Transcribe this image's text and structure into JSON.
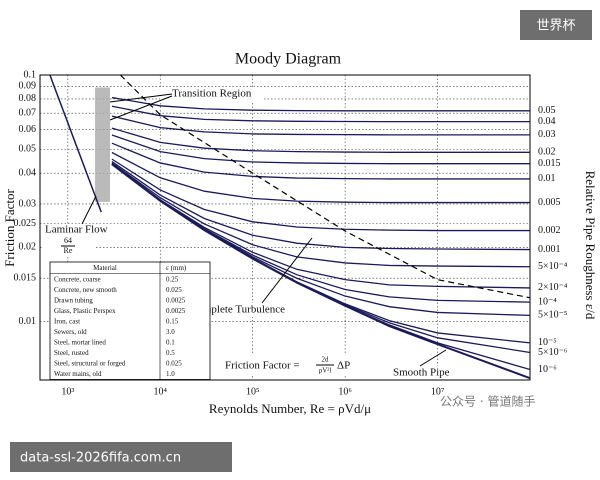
{
  "chart_data": {
    "type": "line",
    "title": "Moody Diagram",
    "xlabel": "Reynolds Number, Re = ρVd/μ",
    "ylabel": "Friction Factor",
    "y2label": "Relative Pipe Roughness ε/d",
    "xscale": "log",
    "yscale": "log",
    "grid": true,
    "xlim": [
      500,
      100000000
    ],
    "ylim": [
      0.0058,
      0.1
    ],
    "xticks": [
      {
        "value": 1000,
        "label": "10³"
      },
      {
        "value": 10000,
        "label": "10⁴"
      },
      {
        "value": 100000,
        "label": "10⁵"
      },
      {
        "value": 1000000,
        "label": "10⁶"
      },
      {
        "value": 10000000,
        "label": "10⁷"
      }
    ],
    "yticks": [
      0.1,
      0.09,
      0.08,
      0.07,
      0.06,
      0.05,
      0.04,
      0.03,
      0.025,
      0.02,
      0.015,
      0.01
    ],
    "x": [
      3000,
      10000,
      30000,
      100000,
      300000,
      1000000,
      3000000,
      10000000,
      100000000
    ],
    "series": [
      {
        "name": "0.05",
        "color": "#1b1b5a",
        "values": [
          0.081,
          0.075,
          0.0729,
          0.072,
          0.0717,
          0.0716,
          0.0716,
          0.0716,
          0.0716
        ]
      },
      {
        "name": "0.04",
        "color": "#1b1b5a",
        "values": [
          0.0747,
          0.0684,
          0.0661,
          0.0652,
          0.0649,
          0.0648,
          0.0647,
          0.0647,
          0.0647
        ]
      },
      {
        "name": "0.03",
        "color": "#1b1b5a",
        "values": [
          0.0681,
          0.0612,
          0.0588,
          0.0577,
          0.0574,
          0.0573,
          0.0572,
          0.0572,
          0.0572
        ]
      },
      {
        "name": "0.02",
        "color": "#1b1b5a",
        "values": [
          0.0609,
          0.0533,
          0.0505,
          0.0493,
          0.0489,
          0.0487,
          0.0486,
          0.0486,
          0.0486
        ]
      },
      {
        "name": "0.015",
        "color": "#1b1b5a",
        "values": [
          0.0571,
          0.0489,
          0.0458,
          0.0444,
          0.044,
          0.0438,
          0.0437,
          0.0437,
          0.0437
        ]
      },
      {
        "name": "0.01",
        "color": "#1b1b5a",
        "values": [
          0.0529,
          0.044,
          0.0404,
          0.0388,
          0.0382,
          0.038,
          0.0379,
          0.0379,
          0.0379
        ]
      },
      {
        "name": "0.005",
        "color": "#1b1b5a",
        "values": [
          0.0485,
          0.0383,
          0.0338,
          0.0316,
          0.0308,
          0.0305,
          0.0304,
          0.0304,
          0.0304
        ]
      },
      {
        "name": "0.002",
        "color": "#1b1b5a",
        "values": [
          0.0456,
          0.0342,
          0.0285,
          0.0254,
          0.0242,
          0.0237,
          0.0235,
          0.0234,
          0.0234
        ]
      },
      {
        "name": "0.001",
        "color": "#1b1b5a",
        "values": [
          0.0446,
          0.0326,
          0.0262,
          0.0224,
          0.0208,
          0.02,
          0.0198,
          0.0197,
          0.0196
        ]
      },
      {
        "name": "5×10⁻⁴",
        "color": "#1b1b5a",
        "values": [
          0.044,
          0.0318,
          0.0249,
          0.0205,
          0.0183,
          0.0173,
          0.0169,
          0.0168,
          0.0167
        ]
      },
      {
        "name": "2×10⁻⁴",
        "color": "#1b1b5a",
        "values": [
          0.0437,
          0.0312,
          0.0241,
          0.0191,
          0.0163,
          0.0148,
          0.0141,
          0.0139,
          0.0137
        ]
      },
      {
        "name": "10⁻⁴",
        "color": "#1b1b5a",
        "values": [
          0.0436,
          0.0311,
          0.0238,
          0.0186,
          0.0155,
          0.0135,
          0.0126,
          0.0122,
          0.012
        ]
      },
      {
        "name": "5×10⁻⁵",
        "color": "#1b1b5a",
        "values": [
          0.0436,
          0.031,
          0.0237,
          0.0183,
          0.015,
          0.0127,
          0.0115,
          0.0109,
          0.0106
        ]
      },
      {
        "name": "10⁻⁵",
        "color": "#1b1b5a",
        "values": [
          0.0435,
          0.0309,
          0.0235,
          0.0181,
          0.0145,
          0.0118,
          0.0101,
          0.009,
          0.0082
        ]
      },
      {
        "name": "5×10⁻⁶",
        "color": "#1b1b5a",
        "values": [
          0.0435,
          0.0309,
          0.0235,
          0.018,
          0.0144,
          0.0117,
          0.0099,
          0.0086,
          0.0075
        ]
      },
      {
        "name": "10⁻⁶",
        "color": "#1b1b5a",
        "values": [
          0.0435,
          0.0309,
          0.0235,
          0.018,
          0.0144,
          0.0116,
          0.0097,
          0.0082,
          0.0064
        ]
      }
    ],
    "smooth_pipe": {
      "name": "Smooth Pipe",
      "color": "#1b1b5a",
      "values": [
        0.0435,
        0.0309,
        0.0235,
        0.018,
        0.0144,
        0.0116,
        0.0096,
        0.0081,
        0.0059
      ]
    },
    "laminar": {
      "name": "Laminar Flow",
      "formula_numerator": "64",
      "formula_denominator": "Re",
      "color": "#1b1b5a",
      "x": [
        640,
        2300
      ],
      "values": [
        0.1,
        0.0278
      ]
    },
    "complete_turbulence": {
      "name": "Complete Turbulence",
      "color": "#000000",
      "dashed": true,
      "x": [
        3700,
        10000,
        100000,
        1000000,
        10000000,
        100000000
      ],
      "values": [
        0.1,
        0.069,
        0.04,
        0.0233,
        0.0148,
        0.0125
      ]
    },
    "transition_band": {
      "name": "Transition Region",
      "color": "#a9a9a9",
      "x": [
        1970,
        2860
      ],
      "y": [
        0.0306,
        0.089
      ]
    },
    "formula": {
      "left": "Friction Factor =",
      "numerator": "2d",
      "denominator": "ρV²l",
      "right": "ΔP"
    },
    "table": {
      "header": [
        "Material",
        "ε (mm)"
      ],
      "rows": [
        [
          "Concrete, coarse",
          "0.25"
        ],
        [
          "Concrete, new smooth",
          "0.025"
        ],
        [
          "Drawn tubing",
          "0.0025"
        ],
        [
          "Glass, Plastic Perspex",
          "0.0025"
        ],
        [
          "Iron, cast",
          "0.15"
        ],
        [
          "Sewers, old",
          "3.0"
        ],
        [
          "Steel, mortar lined",
          "0.1"
        ],
        [
          "Steel, rusted",
          "0.5"
        ],
        [
          "Steel, structural or forged",
          "0.025"
        ],
        [
          "Water mains, old",
          "1.0"
        ]
      ]
    }
  },
  "watermarks": {
    "corner": "世界杯",
    "account": "公众号 · 管道随手",
    "url": "data-ssl-2026fifa.com.cn"
  }
}
